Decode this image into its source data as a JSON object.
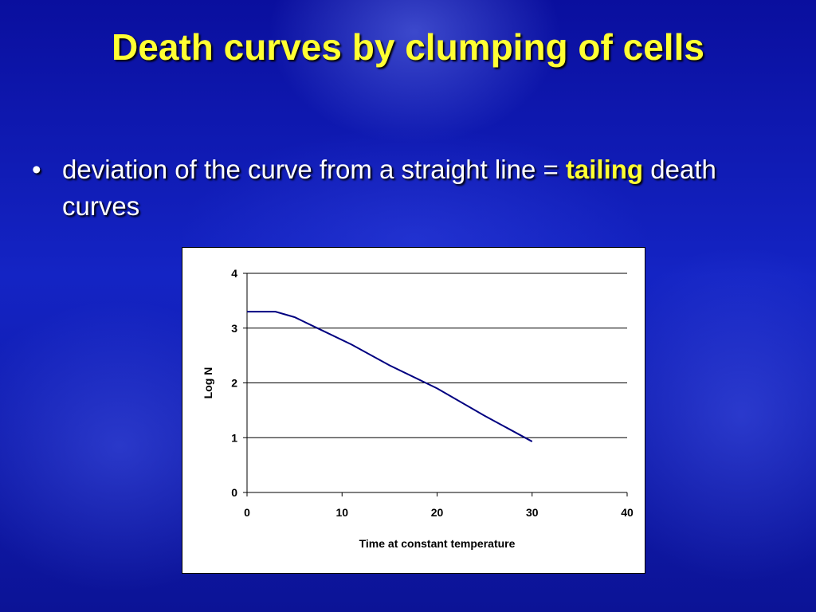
{
  "slide": {
    "title": "Death curves by clumping of cells",
    "bullet": {
      "symbol": "•",
      "text_before": "deviation of the curve from a straight line = ",
      "highlight": "tailing",
      "text_after": " death curves"
    }
  },
  "colors": {
    "title": "#ffff33",
    "highlight": "#ffff33",
    "line": "#000080",
    "background": "#1424c4"
  },
  "chart_data": {
    "type": "line",
    "title": "",
    "xlabel": "Time at constant temperature",
    "ylabel": "Log N",
    "xlim": [
      0,
      40
    ],
    "ylim": [
      0,
      4
    ],
    "xticks": [
      0,
      10,
      20,
      30,
      40
    ],
    "yticks": [
      0,
      1,
      2,
      3,
      4
    ],
    "grid": "horizontal",
    "series": [
      {
        "x": [
          0,
          3,
          5,
          8,
          11,
          15,
          20,
          25,
          30
        ],
        "y": [
          3.3,
          3.3,
          3.2,
          2.95,
          2.7,
          2.32,
          1.9,
          1.4,
          0.93
        ]
      }
    ]
  }
}
